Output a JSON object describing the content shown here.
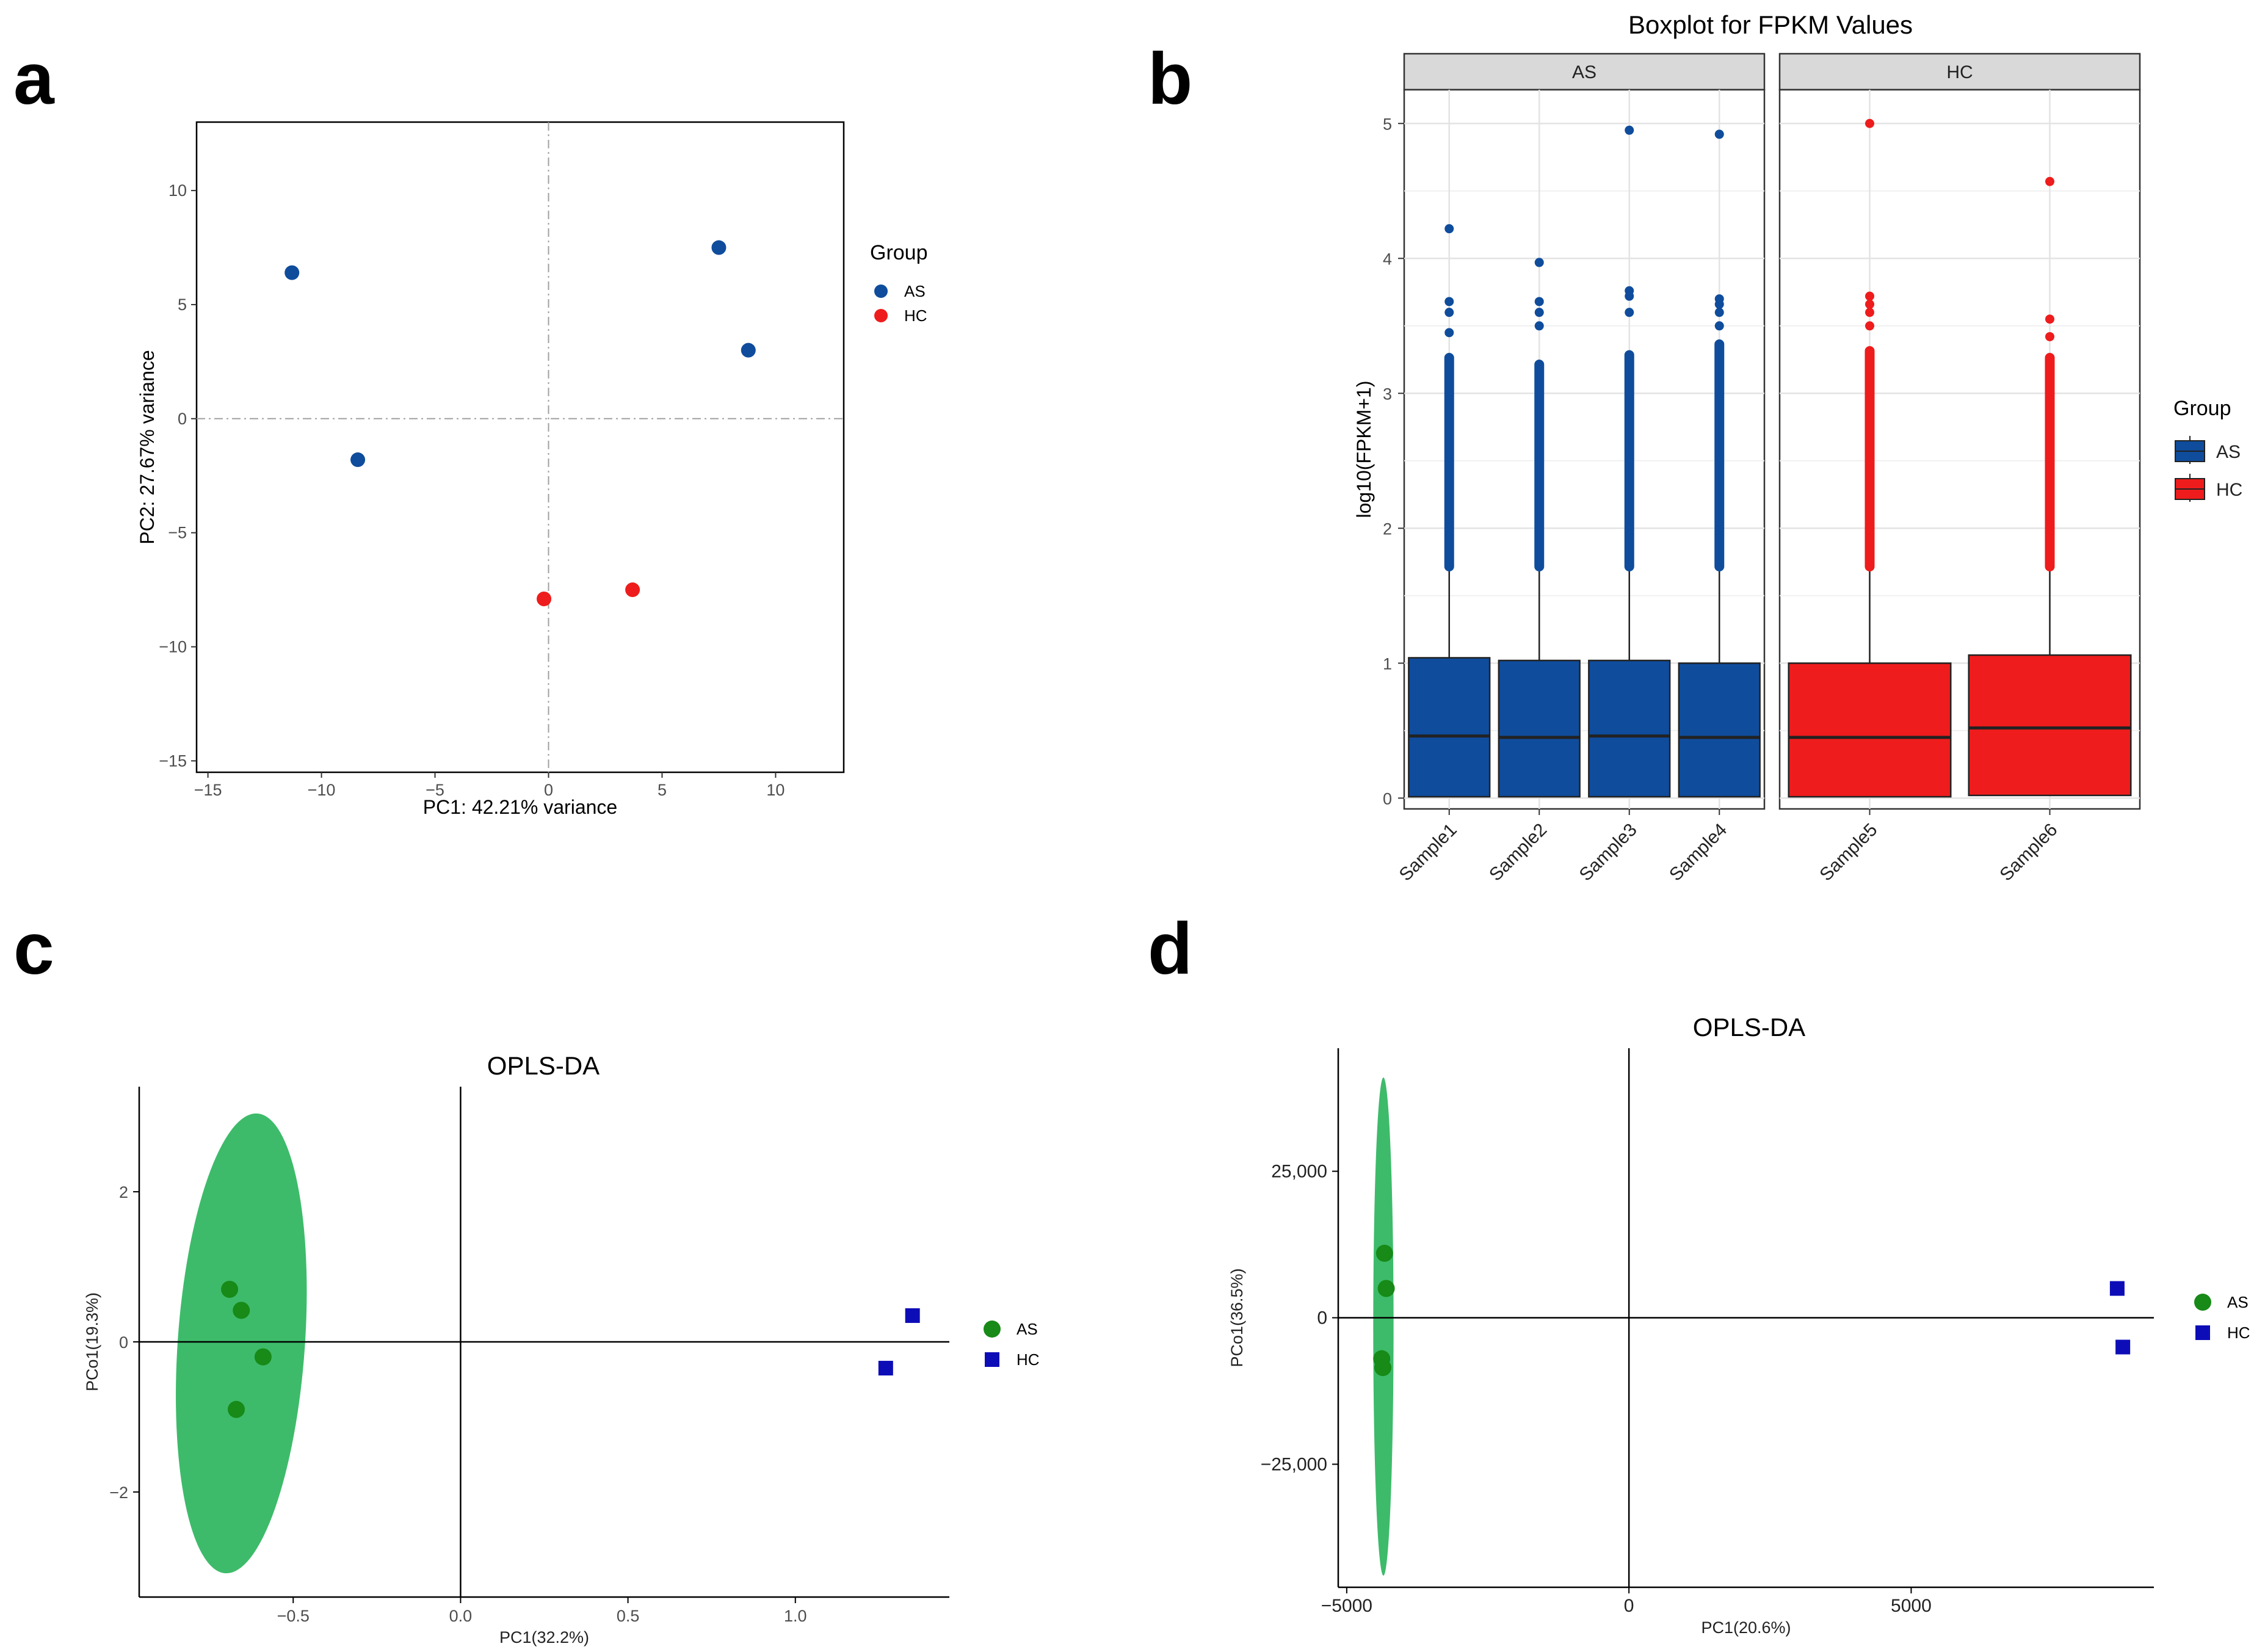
{
  "panels": {
    "a": "a",
    "b": "b",
    "c": "c",
    "d": "d"
  },
  "chart_data": [
    {
      "panel": "a",
      "type": "scatter",
      "xlabel": "PC1: 42.21% variance",
      "ylabel": "PC2: 27.67% variance",
      "xlim": [
        -15.5,
        13
      ],
      "ylim": [
        -15.5,
        13
      ],
      "xticks": [
        -15,
        -10,
        -5,
        0,
        5,
        10
      ],
      "yticks": [
        -15,
        -10,
        -5,
        0,
        5,
        10
      ],
      "xtick_labels": [
        "−15",
        "−10",
        "−5",
        "0",
        "5",
        "10"
      ],
      "ytick_labels": [
        "−15",
        "−10",
        "−5",
        "0",
        "5",
        "10"
      ],
      "grid": false,
      "reference_lines": {
        "x": 0,
        "y": 0,
        "style": "dash-dot"
      },
      "legend": {
        "title": "Group",
        "position": "right"
      },
      "series": [
        {
          "name": "AS",
          "color": "#0f4c9c",
          "points": [
            [
              -11.3,
              6.4
            ],
            [
              -8.4,
              -1.8
            ],
            [
              7.5,
              7.5
            ],
            [
              8.8,
              3.0
            ]
          ]
        },
        {
          "name": "HC",
          "color": "#ee1c1c",
          "points": [
            [
              -0.2,
              -7.9
            ],
            [
              3.7,
              -7.5
            ]
          ]
        }
      ]
    },
    {
      "panel": "b",
      "type": "box",
      "title": "Boxplot for FPKM Values",
      "ylabel": "log10(FPKM+1)",
      "ylim": [
        -0.08,
        5.25
      ],
      "yticks": [
        0,
        1,
        2,
        3,
        4,
        5
      ],
      "ytick_labels": [
        "0",
        "1",
        "2",
        "3",
        "4",
        "5"
      ],
      "grid": true,
      "legend": {
        "title": "Group",
        "position": "right"
      },
      "facets": [
        {
          "label": "AS",
          "categories": [
            "Sample1",
            "Sample2",
            "Sample3",
            "Sample4"
          ]
        },
        {
          "label": "HC",
          "categories": [
            "Sample5",
            "Sample6"
          ]
        }
      ],
      "series": [
        {
          "name": "AS",
          "color": "#0f4c9c",
          "boxes": [
            {
              "category": "Sample1",
              "q1": 0.01,
              "median": 0.46,
              "q3": 1.04,
              "whisker_low": 0,
              "whisker_high": 1.68,
              "outlier_range": [
                1.68,
                3.3
              ],
              "outliers": [
                3.45,
                3.6,
                3.68,
                4.22
              ]
            },
            {
              "category": "Sample2",
              "q1": 0.01,
              "median": 0.45,
              "q3": 1.02,
              "whisker_low": 0,
              "whisker_high": 1.68,
              "outlier_range": [
                1.68,
                3.25
              ],
              "outliers": [
                3.5,
                3.6,
                3.68,
                3.97
              ]
            },
            {
              "category": "Sample3",
              "q1": 0.01,
              "median": 0.46,
              "q3": 1.02,
              "whisker_low": 0,
              "whisker_high": 1.68,
              "outlier_range": [
                1.68,
                3.32
              ],
              "outliers": [
                3.6,
                3.72,
                3.76,
                4.95
              ]
            },
            {
              "category": "Sample4",
              "q1": 0.01,
              "median": 0.45,
              "q3": 1.0,
              "whisker_low": 0,
              "whisker_high": 1.68,
              "outlier_range": [
                1.68,
                3.4
              ],
              "outliers": [
                3.5,
                3.6,
                3.66,
                3.7,
                4.92
              ]
            }
          ]
        },
        {
          "name": "HC",
          "color": "#ee1c1c",
          "boxes": [
            {
              "category": "Sample5",
              "q1": 0.01,
              "median": 0.45,
              "q3": 1.0,
              "whisker_low": 0,
              "whisker_high": 1.68,
              "outlier_range": [
                1.68,
                3.35
              ],
              "outliers": [
                3.5,
                3.6,
                3.66,
                3.72,
                5.0
              ]
            },
            {
              "category": "Sample6",
              "q1": 0.02,
              "median": 0.52,
              "q3": 1.06,
              "whisker_low": 0,
              "whisker_high": 1.68,
              "outlier_range": [
                1.68,
                3.3
              ],
              "outliers": [
                3.42,
                3.55,
                4.57
              ]
            }
          ]
        }
      ]
    },
    {
      "panel": "c",
      "type": "scatter",
      "title": "OPLS-DA",
      "xlabel": "PC1(32.2%)",
      "ylabel": "PCo1(19.3%)",
      "xlim": [
        -0.96,
        1.46
      ],
      "ylim": [
        -3.4,
        3.4
      ],
      "xticks": [
        -0.5,
        0.0,
        0.5,
        1.0
      ],
      "yticks": [
        -2,
        0,
        2
      ],
      "xtick_labels": [
        "−0.5",
        "0.0",
        "0.5",
        "1.0"
      ],
      "ytick_labels": [
        "−2",
        "0",
        "2"
      ],
      "grid": false,
      "reference_lines": {
        "x": 0,
        "y": 0,
        "style": "solid"
      },
      "legend": {
        "position": "right"
      },
      "ellipse": {
        "series": "AS",
        "color": "#3dbb6a",
        "cx": -0.655,
        "cy": -0.02,
        "rx": 0.19,
        "ry": 3.07,
        "angle_deg": 4
      },
      "series": [
        {
          "name": "AS",
          "color": "#178a17",
          "marker": "circle",
          "points": [
            [
              -0.69,
              0.7
            ],
            [
              -0.655,
              0.42
            ],
            [
              -0.59,
              -0.2
            ],
            [
              -0.67,
              -0.9
            ]
          ]
        },
        {
          "name": "HC",
          "color": "#0d0db8",
          "marker": "square",
          "points": [
            [
              1.35,
              0.35
            ],
            [
              1.27,
              -0.35
            ]
          ]
        }
      ]
    },
    {
      "panel": "d",
      "type": "scatter",
      "title": "OPLS-DA",
      "xlabel": "PC1(20.6%)",
      "ylabel": "PCo1(36.5%)",
      "xlim": [
        -5150,
        9300
      ],
      "ylim": [
        -46000,
        46000
      ],
      "xticks": [
        -5000,
        0,
        5000
      ],
      "yticks": [
        -25000,
        0,
        25000
      ],
      "xtick_labels": [
        "−5000",
        "0",
        "5000"
      ],
      "ytick_labels": [
        "−25,000",
        "0",
        "25,000"
      ],
      "grid": false,
      "reference_lines": {
        "x": 0,
        "y": 0,
        "style": "solid"
      },
      "legend": {
        "position": "right"
      },
      "ellipse": {
        "series": "AS",
        "color": "#3dbb6a",
        "cx": -4350,
        "cy": -1500,
        "rx": 180,
        "ry": 42500,
        "angle_deg": 0
      },
      "series": [
        {
          "name": "AS",
          "color": "#178a17",
          "marker": "circle",
          "points": [
            [
              -4330,
              11000
            ],
            [
              -4300,
              5000
            ],
            [
              -4380,
              -7000
            ],
            [
              -4360,
              -8500
            ]
          ]
        },
        {
          "name": "HC",
          "color": "#0d0db8",
          "marker": "square",
          "points": [
            [
              8650,
              5000
            ],
            [
              8750,
              -5000
            ]
          ]
        }
      ]
    }
  ]
}
